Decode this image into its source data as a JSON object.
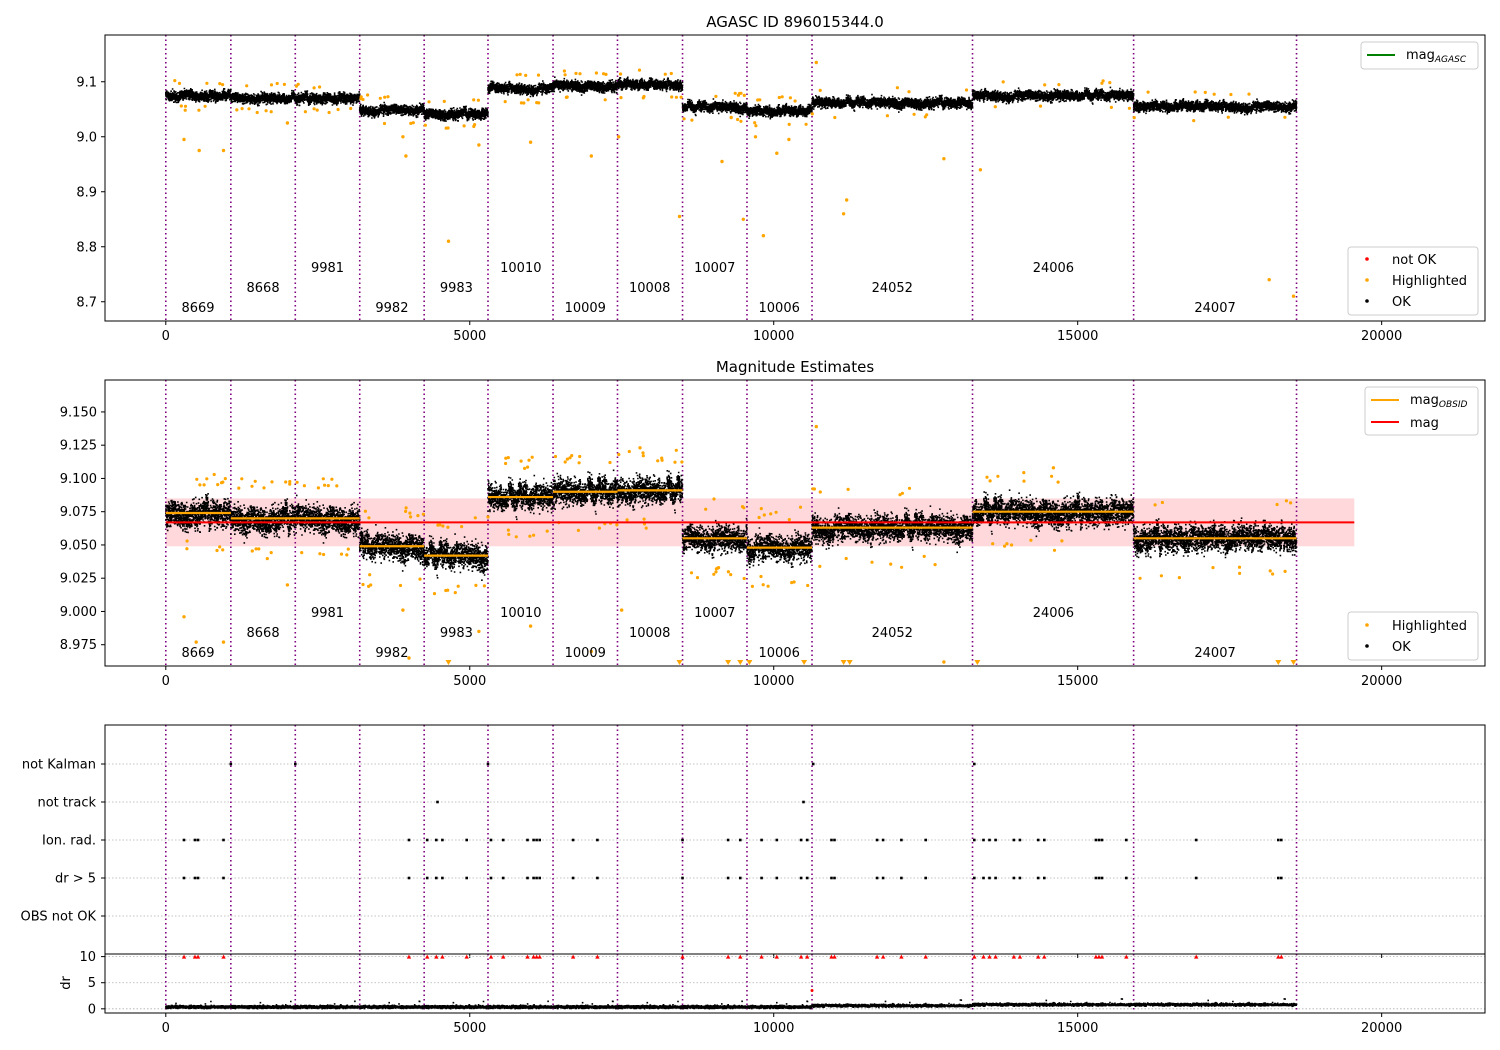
{
  "chart_data": [
    {
      "type": "scatter",
      "title": "AGASC ID 896015344.0",
      "xlim": [
        -1000,
        21700
      ],
      "ylim": [
        8.665,
        9.185
      ],
      "x_ticks": [
        0,
        5000,
        10000,
        15000,
        20000
      ],
      "y_ticks": [
        8.7,
        8.8,
        8.9,
        9.0,
        9.1
      ],
      "y_tick_labels": [
        "8.7",
        "8.8",
        "8.9",
        "9.0",
        "9.1"
      ],
      "legend_top": [
        {
          "label": "mag",
          "sub": "AGASC",
          "type": "line",
          "color": "#008000"
        }
      ],
      "legend_bottom": [
        {
          "label": "not OK",
          "color": "#ff0000"
        },
        {
          "label": "Highlighted",
          "color": "#ffa500"
        },
        {
          "label": "OK",
          "color": "#000000"
        }
      ],
      "outliers": [
        {
          "x": 300,
          "y": 8.995
        },
        {
          "x": 550,
          "y": 8.975
        },
        {
          "x": 950,
          "y": 8.975
        },
        {
          "x": 2000,
          "y": 9.025
        },
        {
          "x": 3900,
          "y": 9.0
        },
        {
          "x": 3950,
          "y": 8.965
        },
        {
          "x": 4650,
          "y": 8.81
        },
        {
          "x": 5150,
          "y": 8.985
        },
        {
          "x": 6000,
          "y": 8.99
        },
        {
          "x": 7000,
          "y": 8.965
        },
        {
          "x": 7450,
          "y": 9.0
        },
        {
          "x": 8450,
          "y": 8.855
        },
        {
          "x": 9150,
          "y": 8.955
        },
        {
          "x": 9300,
          "y": 9.035
        },
        {
          "x": 9500,
          "y": 8.85
        },
        {
          "x": 9700,
          "y": 9.0
        },
        {
          "x": 9830,
          "y": 8.82
        },
        {
          "x": 10050,
          "y": 8.97
        },
        {
          "x": 10250,
          "y": 8.995
        },
        {
          "x": 11200,
          "y": 8.885
        },
        {
          "x": 11150,
          "y": 8.86
        },
        {
          "x": 12800,
          "y": 8.96
        },
        {
          "x": 13400,
          "y": 8.94
        },
        {
          "x": 18150,
          "y": 8.74
        },
        {
          "x": 18550,
          "y": 8.71
        },
        {
          "x": 10700,
          "y": 9.135
        }
      ]
    },
    {
      "type": "scatter",
      "title": "Magnitude Estimates",
      "xlim": [
        -1000,
        21700
      ],
      "ylim": [
        8.959,
        9.174
      ],
      "x_ticks": [
        0,
        5000,
        10000,
        15000,
        20000
      ],
      "y_ticks": [
        8.975,
        9.0,
        9.025,
        9.05,
        9.075,
        9.1,
        9.125,
        9.15
      ],
      "y_tick_labels": [
        "8.975",
        "9.000",
        "9.025",
        "9.050",
        "9.075",
        "9.100",
        "9.125",
        "9.150"
      ],
      "mag": 9.067,
      "mag_band": [
        9.049,
        9.085
      ],
      "mag_xrange": [
        0,
        19550
      ],
      "legend_top": [
        {
          "label": "mag",
          "sub": "OBSID",
          "type": "line",
          "color": "#ffa500"
        },
        {
          "label": "mag",
          "type": "line",
          "color": "#ff0000"
        }
      ],
      "legend_bottom": [
        {
          "label": "Highlighted",
          "color": "#ffa500"
        },
        {
          "label": "OK",
          "color": "#000000"
        }
      ],
      "outliers": [
        {
          "x": 300,
          "y": 8.996
        },
        {
          "x": 500,
          "y": 8.977
        },
        {
          "x": 950,
          "y": 8.977
        },
        {
          "x": 2000,
          "y": 9.02
        },
        {
          "x": 3900,
          "y": 9.001
        },
        {
          "x": 4000,
          "y": 8.965
        },
        {
          "x": 5150,
          "y": 8.985
        },
        {
          "x": 6000,
          "y": 8.989
        },
        {
          "x": 7500,
          "y": 9.001
        },
        {
          "x": 7000,
          "y": 8.97
        },
        {
          "x": 12800,
          "y": 8.962
        },
        {
          "x": 10700,
          "y": 9.139
        },
        {
          "x": 7800,
          "y": 9.123
        },
        {
          "x": 14600,
          "y": 9.108
        }
      ],
      "low_markers_x": [
        4650,
        8450,
        9250,
        9450,
        9600,
        10500,
        11150,
        11250,
        13350,
        18300,
        18550
      ]
    },
    {
      "type": "scatter",
      "xlim": [
        -1000,
        21700
      ],
      "x_ticks": [
        0,
        5000,
        10000,
        15000,
        20000
      ],
      "flag_labels": [
        "not Kalman",
        "not track",
        "Ion. rad.",
        "dr > 5",
        "OBS not OK"
      ],
      "dr_ylabel": "dr",
      "dr_ylim": [
        -0.8,
        10.5
      ],
      "dr_y_ticks": [
        0,
        5,
        10
      ],
      "flags": {
        "not Kalman": [
          1070,
          2130,
          5300,
          10650,
          13300
        ],
        "not track": [
          4470,
          10490
        ],
        "Ion. rad.": [
          300,
          480,
          530,
          950,
          4000,
          4300,
          4450,
          4550,
          4950,
          5350,
          5550,
          5950,
          6050,
          6100,
          6150,
          6700,
          7100,
          8500,
          9250,
          9450,
          9800,
          10050,
          10450,
          10550,
          10950,
          11000,
          11700,
          11800,
          12100,
          12500,
          13300,
          13450,
          13550,
          13650,
          13950,
          14050,
          14350,
          14450,
          15300,
          15350,
          15400,
          15800,
          16950,
          18300,
          18350
        ],
        "dr > 5": [
          300,
          480,
          530,
          950,
          4000,
          4300,
          4450,
          4550,
          4950,
          5350,
          5550,
          5950,
          6050,
          6100,
          6150,
          6700,
          7100,
          8500,
          9250,
          9450,
          9800,
          10050,
          10450,
          10550,
          10950,
          11000,
          11700,
          11800,
          12100,
          12500,
          13300,
          13450,
          13550,
          13650,
          13950,
          14050,
          14350,
          14450,
          15300,
          15350,
          15400,
          15800,
          16950,
          18300,
          18350
        ],
        "OBS not OK": []
      }
    }
  ],
  "observations": [
    {
      "obsid": "8669",
      "start": 0,
      "end": 1070,
      "mean": 9.074,
      "agasc_mean": 9.075
    },
    {
      "obsid": "8668",
      "start": 1070,
      "end": 2130,
      "mean": 9.07,
      "agasc_mean": 9.07
    },
    {
      "obsid": "9981",
      "start": 2130,
      "end": 3190,
      "mean": 9.07,
      "agasc_mean": 9.07
    },
    {
      "obsid": "9982",
      "start": 3190,
      "end": 4250,
      "mean": 9.049,
      "agasc_mean": 9.049
    },
    {
      "obsid": "9983",
      "start": 4250,
      "end": 5300,
      "mean": 9.042,
      "agasc_mean": 9.042
    },
    {
      "obsid": "10010",
      "start": 5300,
      "end": 6370,
      "mean": 9.086,
      "agasc_mean": 9.088
    },
    {
      "obsid": "10009",
      "start": 6370,
      "end": 7430,
      "mean": 9.09,
      "agasc_mean": 9.093
    },
    {
      "obsid": "10008",
      "start": 7430,
      "end": 8500,
      "mean": 9.091,
      "agasc_mean": 9.094
    },
    {
      "obsid": "10007",
      "start": 8500,
      "end": 9560,
      "mean": 9.055,
      "agasc_mean": 9.054
    },
    {
      "obsid": "10006",
      "start": 9560,
      "end": 10630,
      "mean": 9.048,
      "agasc_mean": 9.046
    },
    {
      "obsid": "24052",
      "start": 10630,
      "end": 13270,
      "mean": 9.063,
      "agasc_mean": 9.062
    },
    {
      "obsid": "24006",
      "start": 13270,
      "end": 15920,
      "mean": 9.075,
      "agasc_mean": 9.075
    },
    {
      "obsid": "24007",
      "start": 15920,
      "end": 18600,
      "mean": 9.055,
      "agasc_mean": 9.055
    }
  ],
  "obs_label_rows": [
    2,
    1,
    0,
    2,
    1,
    0,
    2,
    1,
    0,
    2,
    1,
    0,
    2
  ],
  "obs_label_x": [
    530,
    1600,
    2660,
    3720,
    4780,
    5840,
    6900,
    7960,
    9030,
    10090,
    11950,
    14600,
    17260
  ],
  "boundaries": [
    0,
    1070,
    2130,
    3190,
    4250,
    5300,
    6370,
    7430,
    8500,
    9560,
    10630,
    13270,
    15920,
    18600
  ],
  "colors": {
    "ok": "#000000",
    "highlighted": "#ffa500",
    "not_ok": "#ff0000",
    "boundary": "#800080",
    "obs_line": "#ffa500",
    "mag_line": "#ff0000",
    "mag_band": "#ffd8dc",
    "agasc_line": "#008000"
  }
}
